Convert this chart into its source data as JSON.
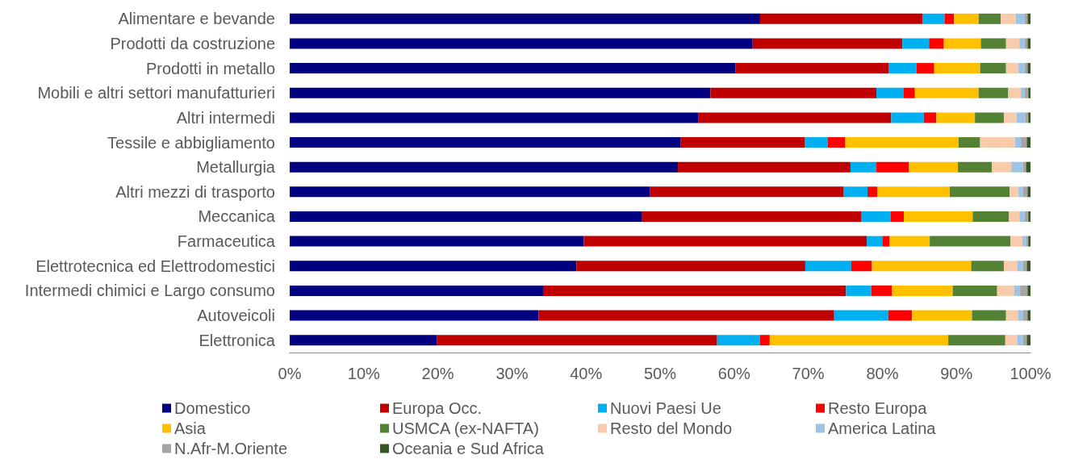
{
  "chart_data": {
    "type": "bar",
    "orientation": "horizontal",
    "stacked": true,
    "categories": [
      "Alimentare e bevande",
      "Prodotti da costruzione",
      "Prodotti in metallo",
      "Mobili e altri settori manufatturieri",
      "Altri intermedi",
      "Tessile e abbigliamento",
      "Metallurgia",
      "Altri mezzi di trasporto",
      "Meccanica",
      "Farmaceutica",
      "Elettrotecnica ed Elettrodomestici",
      "Intermedi chimici e Largo consumo",
      "Autoveicoli",
      "Elettronica"
    ],
    "series": [
      {
        "name": "Domestico",
        "color": "#000080",
        "values": [
          63.5,
          62.5,
          60.2,
          56.8,
          55.2,
          52.8,
          52.4,
          48.6,
          47.5,
          39.7,
          38.7,
          34.2,
          33.6,
          19.9
        ]
      },
      {
        "name": "Europa Occ.",
        "color": "#c00000",
        "values": [
          21.9,
          20.2,
          20.7,
          22.4,
          26.0,
          16.7,
          23.3,
          26.2,
          29.7,
          38.2,
          30.9,
          40.9,
          39.9,
          37.8
        ]
      },
      {
        "name": "Nuovi Paesi Ue",
        "color": "#00b0f0",
        "values": [
          3.0,
          3.6,
          3.7,
          3.7,
          4.4,
          3.1,
          3.5,
          3.2,
          3.9,
          2.1,
          6.2,
          3.4,
          7.3,
          5.8
        ]
      },
      {
        "name": "Resto Europa",
        "color": "#ff0000",
        "values": [
          1.3,
          2.0,
          2.4,
          1.5,
          1.7,
          2.4,
          4.4,
          1.3,
          1.8,
          1.0,
          2.8,
          2.8,
          3.2,
          1.3
        ]
      },
      {
        "name": "Asia",
        "color": "#ffc000",
        "values": [
          3.3,
          5.0,
          6.2,
          8.6,
          5.2,
          15.3,
          6.6,
          9.8,
          9.3,
          5.4,
          13.4,
          8.2,
          8.1,
          24.1
        ]
      },
      {
        "name": "USMCA (ex-NAFTA)",
        "color": "#548235",
        "values": [
          3.0,
          3.4,
          3.5,
          4.0,
          3.9,
          2.9,
          4.6,
          8.1,
          4.9,
          10.9,
          4.4,
          6.0,
          4.6,
          7.7
        ]
      },
      {
        "name": "Resto del Mondo",
        "color": "#f8cbad",
        "values": [
          2.0,
          1.8,
          1.7,
          1.7,
          1.7,
          4.7,
          2.6,
          1.2,
          1.4,
          1.6,
          1.8,
          2.3,
          1.6,
          1.6
        ]
      },
      {
        "name": "America Latina",
        "color": "#9dc3e6",
        "values": [
          1.2,
          0.7,
          0.8,
          0.5,
          1.2,
          0.8,
          1.6,
          0.6,
          0.7,
          0.5,
          0.8,
          0.8,
          0.7,
          0.8
        ]
      },
      {
        "name": "N.Afr-M.Oriente",
        "color": "#a5a5a5",
        "values": [
          0.4,
          0.4,
          0.4,
          0.5,
          0.4,
          0.8,
          0.4,
          0.6,
          0.5,
          0.3,
          0.5,
          1.0,
          0.6,
          0.5
        ]
      },
      {
        "name": "Oceania e Sud Africa",
        "color": "#375623",
        "values": [
          0.4,
          0.4,
          0.4,
          0.3,
          0.3,
          0.5,
          0.6,
          0.4,
          0.3,
          0.3,
          0.5,
          0.4,
          0.4,
          0.5
        ]
      }
    ],
    "xlim": [
      0,
      100
    ],
    "xticks": [
      {
        "value": 0,
        "label": "0%"
      },
      {
        "value": 10,
        "label": "10%"
      },
      {
        "value": 20,
        "label": "20%"
      },
      {
        "value": 30,
        "label": "30%"
      },
      {
        "value": 40,
        "label": "40%"
      },
      {
        "value": 50,
        "label": "50%"
      },
      {
        "value": 60,
        "label": "60%"
      },
      {
        "value": 70,
        "label": "70%"
      },
      {
        "value": 80,
        "label": "80%"
      },
      {
        "value": 90,
        "label": "90%"
      },
      {
        "value": 100,
        "label": "100%"
      }
    ],
    "grid": false,
    "legend": "bottom"
  }
}
